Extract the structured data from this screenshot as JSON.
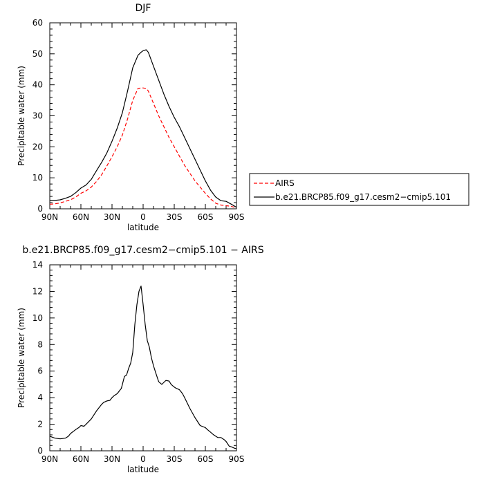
{
  "chart_data": [
    {
      "type": "line",
      "title": "DJF",
      "xlabel": "latitude",
      "ylabel": "Precipitable water (mm)",
      "xlim": [
        90,
        -90
      ],
      "ylim": [
        0,
        60
      ],
      "x_ticks": [
        90,
        60,
        30,
        0,
        -30,
        -60,
        -90
      ],
      "x_tick_labels": [
        "90N",
        "60N",
        "30N",
        "0",
        "30S",
        "60S",
        "90S"
      ],
      "y_ticks": [
        0,
        10,
        20,
        30,
        40,
        50,
        60
      ],
      "y_tick_labels": [
        "0",
        "10",
        "20",
        "30",
        "40",
        "50",
        "60"
      ],
      "grid": false,
      "legend_position": "right",
      "series": [
        {
          "name": "AIRS",
          "color": "#ff0000",
          "dash": "dashed",
          "x": [
            90,
            85,
            80,
            75,
            70,
            65,
            60,
            55,
            50,
            45,
            40,
            35,
            30,
            25,
            20,
            15,
            10,
            5,
            2,
            0,
            -3,
            -5,
            -10,
            -15,
            -20,
            -25,
            -30,
            -35,
            -40,
            -45,
            -50,
            -55,
            -60,
            -65,
            -70,
            -75,
            -80,
            -85,
            -90
          ],
          "values": [
            1.5,
            1.6,
            1.9,
            2.4,
            2.9,
            3.8,
            5.0,
            5.8,
            7.0,
            8.8,
            11.0,
            13.8,
            16.8,
            20.0,
            23.8,
            29.0,
            35.0,
            38.8,
            39.0,
            39.0,
            38.8,
            38.0,
            34.0,
            30.0,
            26.5,
            23.0,
            20.0,
            17.0,
            14.0,
            11.5,
            9.0,
            7.0,
            5.0,
            3.2,
            1.8,
            1.2,
            1.0,
            0.8,
            0.3
          ]
        },
        {
          "name": "b.e21.BRCP85.f09_g17.cesm2−cmip5.101",
          "color": "#000000",
          "dash": "solid",
          "x": [
            90,
            85,
            80,
            75,
            70,
            65,
            60,
            55,
            50,
            45,
            40,
            35,
            30,
            25,
            20,
            15,
            10,
            5,
            2,
            0,
            -3,
            -5,
            -10,
            -15,
            -20,
            -25,
            -30,
            -35,
            -40,
            -45,
            -50,
            -55,
            -60,
            -65,
            -70,
            -75,
            -80,
            -85,
            -90
          ],
          "values": [
            2.7,
            2.7,
            2.9,
            3.4,
            4.0,
            5.2,
            6.7,
            7.7,
            9.5,
            12.3,
            15.0,
            18.0,
            21.8,
            26.0,
            31.0,
            38.0,
            45.5,
            49.5,
            50.5,
            51.0,
            51.3,
            50.5,
            46.0,
            41.5,
            37.0,
            33.0,
            29.5,
            26.5,
            23.0,
            19.5,
            16.0,
            12.5,
            9.0,
            6.0,
            3.8,
            2.6,
            2.4,
            1.5,
            0.5
          ]
        }
      ]
    },
    {
      "type": "line",
      "title": "b.e21.BRCP85.f09_g17.cesm2−cmip5.101  −  AIRS",
      "xlabel": "latitude",
      "ylabel": "Precipitable water (mm)",
      "xlim": [
        90,
        -90
      ],
      "ylim": [
        0,
        14
      ],
      "x_ticks": [
        90,
        60,
        30,
        0,
        -30,
        -60,
        -90
      ],
      "x_tick_labels": [
        "90N",
        "60N",
        "30N",
        "0",
        "30S",
        "60S",
        "90S"
      ],
      "y_ticks": [
        0,
        2,
        4,
        6,
        8,
        10,
        12,
        14
      ],
      "y_tick_labels": [
        "0",
        "2",
        "4",
        "6",
        "8",
        "10",
        "12",
        "14"
      ],
      "grid": false,
      "series": [
        {
          "color": "#000000",
          "dash": "solid",
          "x": [
            90,
            85,
            80,
            75,
            72,
            70,
            65,
            62,
            60,
            57,
            55,
            50,
            45,
            42,
            40,
            38,
            35,
            32,
            30,
            28,
            25,
            22,
            21,
            18,
            16,
            14,
            12,
            10,
            8,
            6,
            4,
            2,
            0,
            -2,
            -4,
            -6,
            -8,
            -10,
            -12,
            -15,
            -18,
            -20,
            -22,
            -25,
            -27,
            -30,
            -32,
            -35,
            -38,
            -40,
            -45,
            -50,
            -55,
            -60,
            -62,
            -65,
            -68,
            -70,
            -72,
            -75,
            -78,
            -80,
            -83,
            -85,
            -88,
            -90
          ],
          "values": [
            1.1,
            0.95,
            0.9,
            0.95,
            1.1,
            1.3,
            1.6,
            1.75,
            1.9,
            1.85,
            2.0,
            2.4,
            3.0,
            3.3,
            3.5,
            3.65,
            3.75,
            3.8,
            4.0,
            4.15,
            4.3,
            4.6,
            4.7,
            5.6,
            5.7,
            6.2,
            6.6,
            7.4,
            9.5,
            11.0,
            12.0,
            12.4,
            11.0,
            9.5,
            8.3,
            7.8,
            7.0,
            6.4,
            5.9,
            5.2,
            5.0,
            5.15,
            5.3,
            5.25,
            5.0,
            4.8,
            4.7,
            4.6,
            4.3,
            4.0,
            3.2,
            2.5,
            1.9,
            1.75,
            1.6,
            1.4,
            1.2,
            1.1,
            1.0,
            1.0,
            0.85,
            0.7,
            0.35,
            0.3,
            0.2,
            0.15
          ]
        }
      ]
    }
  ]
}
